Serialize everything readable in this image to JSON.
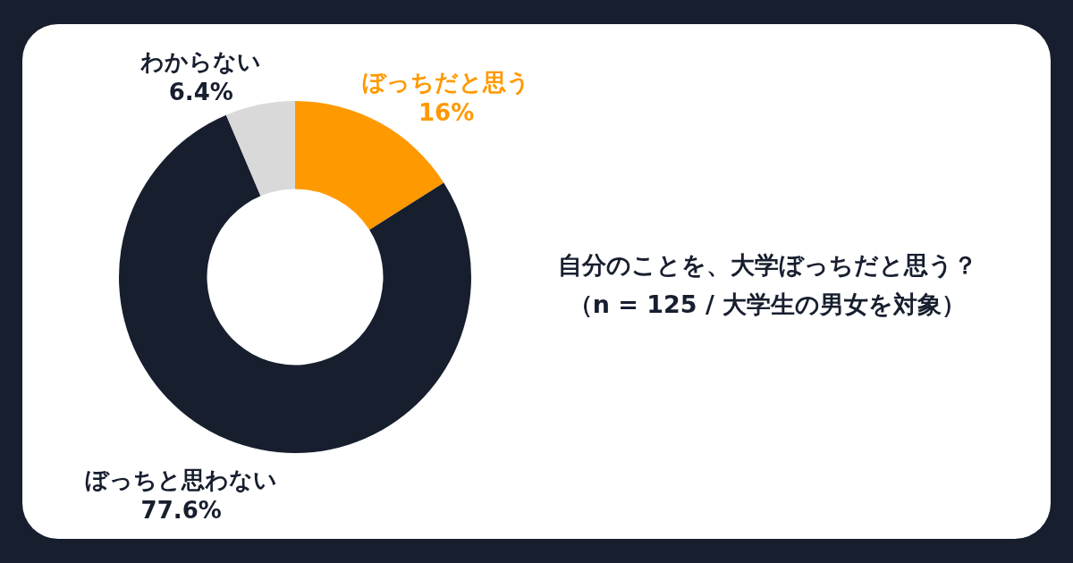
{
  "chart_data": {
    "type": "donut",
    "title": "自分のことを、大学ぼっちだと思う？",
    "subtitle": "（n = 125 / 大学生の男女を対象）",
    "categories": [
      "ぼっちだと思う",
      "ぼっちと思わない",
      "わからない"
    ],
    "values": [
      16,
      77.6,
      6.4
    ],
    "colors": [
      "#ff9900",
      "#171e2e",
      "#d9d9d9"
    ],
    "value_labels": [
      "16%",
      "77.6%",
      "6.4%"
    ]
  }
}
